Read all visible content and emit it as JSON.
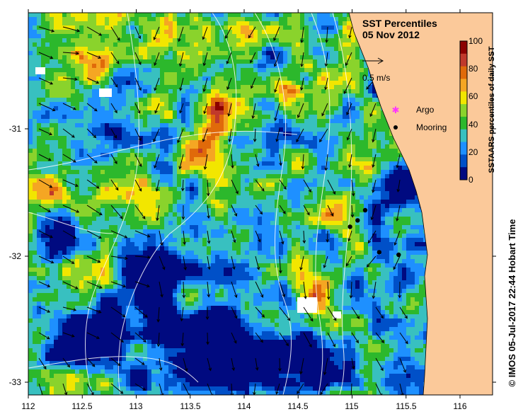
{
  "map": {
    "title": "SST Percentiles",
    "date": "05 Nov 2012",
    "x_ticks": [
      "112",
      "112.5",
      "113",
      "113.5",
      "114",
      "114.5",
      "115",
      "115.5",
      "116"
    ],
    "y_ticks": [
      "-31",
      "-32",
      "-33"
    ],
    "vector_scale_label": "0.5 m/s",
    "legend": {
      "argo_label": "Argo",
      "mooring_label": "Mooring"
    },
    "colorbar": {
      "title": "SSTAARS percentiles of daily SST",
      "ticks": [
        "100",
        "80",
        "60",
        "40",
        "20",
        "0"
      ],
      "colors": [
        "#8b0000",
        "#c0392b",
        "#e06a0a",
        "#f5a623",
        "#f2e600",
        "#8ad32c",
        "#2cb82c",
        "#38c0c0",
        "#1e90ff",
        "#0050c8",
        "#000a80"
      ]
    },
    "credit": "© IMOS 05-Jul-2017 22:44 Hobart Time",
    "land_color": "#fbc99a",
    "moorings": [
      {
        "lon": 115.12,
        "lat": -31.65
      },
      {
        "lon": 115.05,
        "lat": -31.73
      },
      {
        "lon": 114.98,
        "lat": -31.78
      },
      {
        "lon": 115.25,
        "lat": -31.98
      },
      {
        "lon": 115.43,
        "lat": -32.0
      }
    ]
  }
}
